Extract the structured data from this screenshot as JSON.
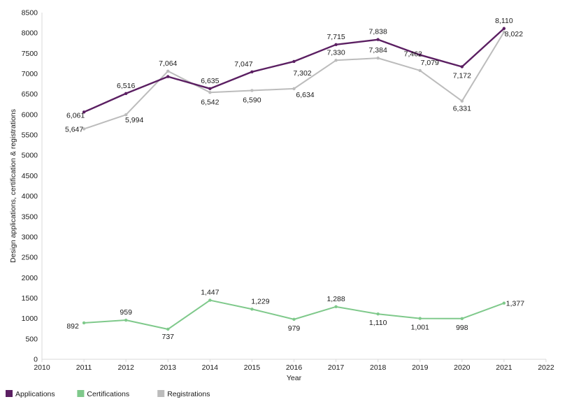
{
  "chart_data": {
    "type": "line",
    "title": "",
    "xlabel": "Year",
    "ylabel": "Design applications, certification & registrations",
    "xlim": [
      2010,
      2022
    ],
    "ylim": [
      0,
      8500
    ],
    "x_ticks": [
      2010,
      2011,
      2012,
      2013,
      2014,
      2015,
      2016,
      2017,
      2018,
      2019,
      2020,
      2021,
      2022
    ],
    "y_ticks": [
      0,
      500,
      1000,
      1500,
      2000,
      2500,
      3000,
      3500,
      4000,
      4500,
      5000,
      5500,
      6000,
      6500,
      7000,
      7500,
      8000,
      8500
    ],
    "grid": false,
    "legend_position": "bottom-left",
    "x": [
      2011,
      2012,
      2013,
      2014,
      2015,
      2016,
      2017,
      2018,
      2019,
      2020,
      2021
    ],
    "series": [
      {
        "name": "Applications",
        "color": "#5b1f62",
        "values": [
          6061,
          6516,
          6930,
          6635,
          7047,
          7302,
          7715,
          7838,
          7462,
          7172,
          8110
        ],
        "labels": [
          "6,061",
          "6,516",
          "",
          "6,635",
          "7,047",
          "7,302",
          "7,715",
          "7,838",
          "7,462",
          "7,172",
          "8,110"
        ]
      },
      {
        "name": "Certifications",
        "color": "#7fc98b",
        "values": [
          892,
          959,
          737,
          1447,
          1229,
          979,
          1288,
          1110,
          1001,
          998,
          1377
        ],
        "labels": [
          "892",
          "959",
          "737",
          "1,447",
          "1,229",
          "979",
          "1,288",
          "1,110",
          "1,001",
          "998",
          "1,377"
        ]
      },
      {
        "name": "Registrations",
        "color": "#bcbcbc",
        "values": [
          5647,
          5994,
          7064,
          6542,
          6590,
          6634,
          7330,
          7384,
          7079,
          6331,
          8022
        ],
        "labels": [
          "5,647",
          "5,994",
          "7,064",
          "6,542",
          "6,590",
          "6,634",
          "7,330",
          "7,384",
          "7,079",
          "6,331",
          "8,022"
        ]
      }
    ]
  }
}
